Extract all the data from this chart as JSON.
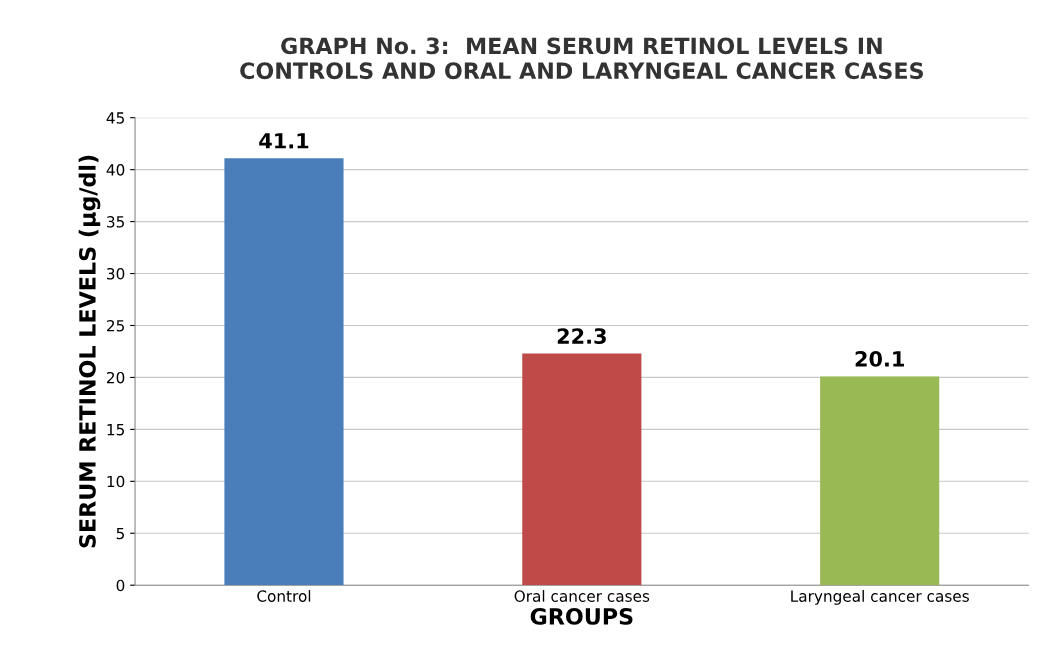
{
  "chart_data": {
    "type": "bar",
    "title": "GRAPH No. 3:  MEAN SERUM RETINOL LEVELS IN\nCONTROLS AND ORAL AND LARYNGEAL CANCER CASES",
    "xlabel": "GROUPS",
    "ylabel": "SERUM RETINOL LEVELS (µg/dl)",
    "categories": [
      "Control",
      "Oral cancer cases",
      "Laryngeal cancer cases"
    ],
    "values": [
      41.1,
      22.3,
      20.1
    ],
    "colors": [
      "#4a7ebb",
      "#be4b48",
      "#98b954"
    ],
    "ylim": [
      0,
      45
    ],
    "yticks": [
      0,
      5,
      10,
      15,
      20,
      25,
      30,
      35,
      40,
      45
    ],
    "grid": "y",
    "data_labels": true,
    "legend": false
  }
}
